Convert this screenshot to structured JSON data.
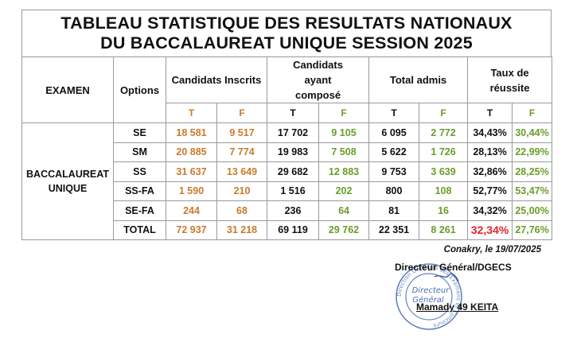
{
  "title": {
    "line1": "TABLEAU STATISTIQUE DES RESULTATS NATIONAUX",
    "line2": "DU BACCALAUREAT UNIQUE SESSION 2025"
  },
  "headers": {
    "examen": "EXAMEN",
    "options": "Options",
    "inscrits": "Candidats Inscrits",
    "compose": "Candidats ayant composé",
    "admis": "Total admis",
    "taux": "Taux de réussite",
    "t": "T",
    "f": "F"
  },
  "exam_label": {
    "line1": "BACCALAUREAT",
    "line2": "UNIQUE"
  },
  "rows": [
    {
      "option": "SE",
      "ins_t": "18 581",
      "ins_f": "9 517",
      "comp_t": "17 702",
      "comp_f": "9 105",
      "adm_t": "6 095",
      "adm_f": "2 772",
      "taux_t": "34,43%",
      "taux_f": "30,44%"
    },
    {
      "option": "SM",
      "ins_t": "20 885",
      "ins_f": "7 774",
      "comp_t": "19 983",
      "comp_f": "7 508",
      "adm_t": "5 622",
      "adm_f": "1 726",
      "taux_t": "28,13%",
      "taux_f": "22,99%"
    },
    {
      "option": "SS",
      "ins_t": "31 637",
      "ins_f": "13 649",
      "comp_t": "29 682",
      "comp_f": "12 883",
      "adm_t": "9 753",
      "adm_f": "3 639",
      "taux_t": "32,86%",
      "taux_f": "28,25%"
    },
    {
      "option": "SS-FA",
      "ins_t": "1 590",
      "ins_f": "210",
      "comp_t": "1 516",
      "comp_f": "202",
      "adm_t": "800",
      "adm_f": "108",
      "taux_t": "52,77%",
      "taux_f": "53,47%"
    },
    {
      "option": "SE-FA",
      "ins_t": "244",
      "ins_f": "68",
      "comp_t": "236",
      "comp_f": "64",
      "adm_t": "81",
      "adm_f": "16",
      "taux_t": "34,32%",
      "taux_f": "25,00%"
    }
  ],
  "total": {
    "option": "TOTAL",
    "ins_t": "72 937",
    "ins_f": "31 218",
    "comp_t": "69 119",
    "comp_f": "29 762",
    "adm_t": "22 351",
    "adm_f": "8 261",
    "taux_t": "32,34%",
    "taux_f": "27,76%"
  },
  "footer": {
    "date": "Conakry, le 19/07/2025",
    "role": "Directeur Général/DGECS",
    "name": "Mamady 49 KEITA"
  },
  "stamp": {
    "line1": "Directeur",
    "line2": "Général",
    "ring_text": "Direction Générale des Examens et Concours"
  },
  "colors": {
    "orange": "#c97a2b",
    "green": "#6a9d2a",
    "red": "#e0262a",
    "stamp_blue": "#4a6fb5"
  }
}
